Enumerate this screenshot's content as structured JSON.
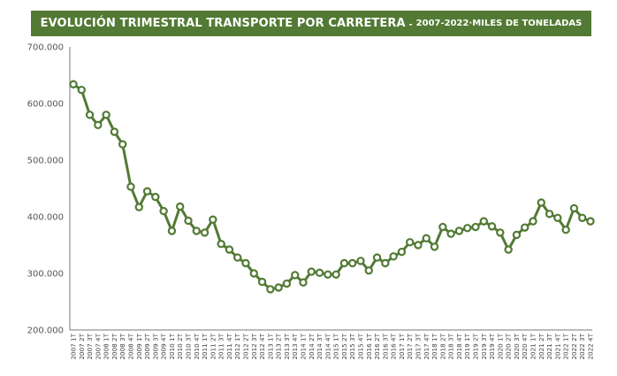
{
  "chart_data": {
    "type": "line",
    "title": "EVOLUCIÓN TRIMESTRAL TRANSPORTE POR CARRETERA",
    "title_sep": " - ",
    "subtitle_parts": [
      "2007-2022",
      "MILES DE TONELADAS"
    ],
    "subtitle_sep": " · ",
    "xlabel": "",
    "ylabel": "",
    "ylim": [
      200,
      700
    ],
    "yticks": [
      200,
      300,
      400,
      500,
      600,
      700
    ],
    "ytick_labels": [
      "200.000",
      "300.000",
      "400.000",
      "500.000",
      "600.000",
      "700.000"
    ],
    "grid": false,
    "line_color": "#527a34",
    "title_bar_color": "#527a34",
    "x": [
      "2007 1T",
      "2007 2T",
      "2007 3T",
      "2007 4T",
      "2008 1T",
      "2008 2T",
      "2008 3T",
      "2008 4T",
      "2009 1T",
      "2009 2T",
      "2009 3T",
      "2009 4T",
      "2010 1T",
      "2010 2T",
      "2010 3T",
      "2010 4T",
      "2011 1T",
      "2011 2T",
      "2011 3T",
      "2011 4T",
      "2012 1T",
      "2012 2T",
      "2012 3T",
      "2012 4T",
      "2013 1T",
      "2013 2T",
      "2013 3T",
      "2013 4T",
      "2014 1T",
      "2014 2T",
      "2014 3T",
      "2014 4T",
      "2015 1T",
      "2015 2T",
      "2015 3T",
      "2015 4T",
      "2016 1T",
      "2016 2T",
      "2016 3T",
      "2016 4T",
      "2017 1T",
      "2017 2T",
      "2017 3T",
      "2017 4T",
      "2018 1T",
      "2018 2T",
      "2018 3T",
      "2018 4T",
      "2019 1T",
      "2019 2T",
      "2019 3T",
      "2019 4T",
      "2020 1T",
      "2020 2T",
      "2020 3T",
      "2020 4T",
      "2021 1T",
      "2021 2T",
      "2021 3T",
      "2021 4T",
      "2022 1T",
      "2022 2T",
      "2022 3T",
      "2022 4T"
    ],
    "series": [
      {
        "values": [
          634,
          624,
          580,
          562,
          580,
          550,
          528,
          453,
          417,
          445,
          435,
          410,
          375,
          418,
          393,
          375,
          372,
          395,
          352,
          342,
          328,
          318,
          300,
          285,
          272,
          275,
          282,
          297,
          284,
          303,
          301,
          298,
          298,
          318,
          318,
          322,
          305,
          328,
          318,
          330,
          338,
          355,
          350,
          362,
          347,
          382,
          370,
          375,
          380,
          382,
          392,
          383,
          372,
          342,
          368,
          381,
          392,
          425,
          405,
          398,
          377,
          415,
          398,
          392
        ]
      }
    ]
  }
}
